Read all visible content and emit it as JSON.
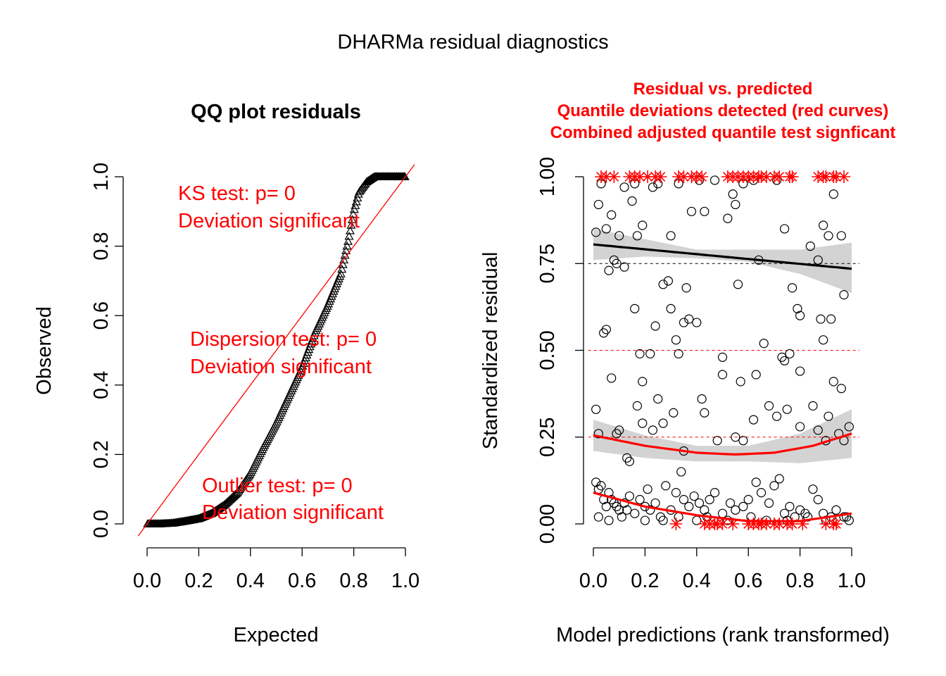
{
  "title": "DHARMa residual diagnostics",
  "colors": {
    "test_text": "#ff0000",
    "points": "#000000",
    "band": "#d3d3d3"
  },
  "chart_data": [
    {
      "type": "scatter",
      "title": "QQ plot residuals",
      "xlabel": "Expected",
      "ylabel": "Observed",
      "xlim": [
        0,
        1
      ],
      "ylim": [
        0,
        1
      ],
      "x_ticks": [
        "0.0",
        "0.2",
        "0.4",
        "0.6",
        "0.8",
        "1.0"
      ],
      "y_ticks": [
        "0.0",
        "0.2",
        "0.4",
        "0.6",
        "0.8",
        "1.0"
      ],
      "marker": "triangle",
      "reference_line": {
        "from": [
          0,
          0
        ],
        "to": [
          1,
          1
        ],
        "color": "#ff0000"
      },
      "curve_knots": [
        [
          0.0,
          0.0
        ],
        [
          0.05,
          0.0
        ],
        [
          0.1,
          0.002
        ],
        [
          0.15,
          0.008
        ],
        [
          0.2,
          0.015
        ],
        [
          0.25,
          0.03
        ],
        [
          0.3,
          0.055
        ],
        [
          0.35,
          0.09
        ],
        [
          0.4,
          0.145
        ],
        [
          0.45,
          0.22
        ],
        [
          0.5,
          0.29
        ],
        [
          0.55,
          0.37
        ],
        [
          0.6,
          0.45
        ],
        [
          0.65,
          0.55
        ],
        [
          0.7,
          0.63
        ],
        [
          0.75,
          0.72
        ],
        [
          0.78,
          0.82
        ],
        [
          0.8,
          0.9
        ],
        [
          0.82,
          0.955
        ],
        [
          0.85,
          0.985
        ],
        [
          0.88,
          1.0
        ],
        [
          1.0,
          1.0
        ]
      ],
      "annotations": [
        {
          "line1": "KS test: p= 0",
          "line2": "Deviation  significant"
        },
        {
          "line1": "Dispersion test: p= 0",
          "line2": "Deviation  significant"
        },
        {
          "line1": "Outlier test: p= 0",
          "line2": "Deviation  significant"
        }
      ]
    },
    {
      "type": "scatter",
      "title_lines": [
        "Residual vs. predicted",
        "Quantile deviations detected (red curves)",
        "Combined adjusted quantile test signficant"
      ],
      "xlabel": "Model predictions (rank transformed)",
      "ylabel": "Standardized residual",
      "xlim": [
        0,
        1
      ],
      "ylim": [
        0,
        1
      ],
      "x_ticks": [
        "0.0",
        "0.2",
        "0.4",
        "0.6",
        "0.8",
        "1.0"
      ],
      "y_ticks": [
        "0.00",
        "0.25",
        "0.50",
        "0.75",
        "1.00"
      ],
      "reference_lines": [
        0.25,
        0.5,
        0.75
      ],
      "quantile_curves": [
        {
          "quantile": 0.75,
          "color": "#000000",
          "points": [
            [
              0.0,
              0.805
            ],
            [
              0.5,
              0.77
            ],
            [
              1.0,
              0.735
            ]
          ],
          "band": [
            [
              0.0,
              0.76,
              0.85
            ],
            [
              0.2,
              0.77,
              0.82
            ],
            [
              0.4,
              0.765,
              0.79
            ],
            [
              0.6,
              0.755,
              0.79
            ],
            [
              0.8,
              0.72,
              0.79
            ],
            [
              1.0,
              0.665,
              0.81
            ]
          ]
        },
        {
          "quantile": 0.25,
          "color": "#ff0000",
          "points": [
            [
              0.0,
              0.255
            ],
            [
              0.2,
              0.225
            ],
            [
              0.4,
              0.205
            ],
            [
              0.55,
              0.2
            ],
            [
              0.7,
              0.205
            ],
            [
              0.85,
              0.225
            ],
            [
              1.0,
              0.26
            ]
          ],
          "band": [
            [
              0.0,
              0.21,
              0.3
            ],
            [
              0.2,
              0.19,
              0.255
            ],
            [
              0.4,
              0.18,
              0.225
            ],
            [
              0.6,
              0.18,
              0.225
            ],
            [
              0.8,
              0.175,
              0.26
            ],
            [
              1.0,
              0.19,
              0.33
            ]
          ]
        },
        {
          "quantile": 0.5,
          "color": "#ff0000",
          "points": [
            [
              0.0,
              0.09
            ],
            [
              0.2,
              0.05
            ],
            [
              0.4,
              0.025
            ],
            [
              0.6,
              0.008
            ],
            [
              0.8,
              0.008
            ],
            [
              1.0,
              0.03
            ]
          ],
          "band": []
        }
      ],
      "points": [
        [
          0.01,
          0.84
        ],
        [
          0.02,
          0.92
        ],
        [
          0.03,
          0.98
        ],
        [
          0.05,
          0.85
        ],
        [
          0.06,
          0.73
        ],
        [
          0.07,
          0.89
        ],
        [
          0.08,
          0.76
        ],
        [
          0.09,
          0.75
        ],
        [
          0.1,
          0.83
        ],
        [
          0.12,
          0.97
        ],
        [
          0.12,
          0.74
        ],
        [
          0.15,
          0.93
        ],
        [
          0.16,
          0.98
        ],
        [
          0.17,
          0.83
        ],
        [
          0.19,
          0.86
        ],
        [
          0.23,
          0.97
        ],
        [
          0.25,
          0.98
        ],
        [
          0.27,
          0.69
        ],
        [
          0.29,
          0.7
        ],
        [
          0.3,
          0.83
        ],
        [
          0.33,
          0.98
        ],
        [
          0.36,
          0.68
        ],
        [
          0.38,
          0.9
        ],
        [
          0.41,
          0.99
        ],
        [
          0.43,
          0.9
        ],
        [
          0.47,
          0.99
        ],
        [
          0.52,
          0.88
        ],
        [
          0.54,
          0.95
        ],
        [
          0.55,
          0.92
        ],
        [
          0.56,
          0.69
        ],
        [
          0.58,
          0.98
        ],
        [
          0.62,
          0.99
        ],
        [
          0.64,
          0.76
        ],
        [
          0.71,
          0.99
        ],
        [
          0.74,
          0.85
        ],
        [
          0.77,
          0.68
        ],
        [
          0.8,
          0.6
        ],
        [
          0.84,
          0.8
        ],
        [
          0.87,
          0.76
        ],
        [
          0.89,
          0.86
        ],
        [
          0.91,
          0.83
        ],
        [
          0.93,
          0.95
        ],
        [
          0.96,
          0.83
        ],
        [
          0.97,
          0.66
        ],
        [
          0.04,
          0.55
        ],
        [
          0.05,
          0.56
        ],
        [
          0.16,
          0.62
        ],
        [
          0.18,
          0.49
        ],
        [
          0.19,
          0.41
        ],
        [
          0.22,
          0.49
        ],
        [
          0.24,
          0.57
        ],
        [
          0.3,
          0.62
        ],
        [
          0.32,
          0.53
        ],
        [
          0.33,
          0.49
        ],
        [
          0.35,
          0.58
        ],
        [
          0.37,
          0.59
        ],
        [
          0.4,
          0.58
        ],
        [
          0.5,
          0.48
        ],
        [
          0.5,
          0.43
        ],
        [
          0.57,
          0.41
        ],
        [
          0.63,
          0.43
        ],
        [
          0.66,
          0.52
        ],
        [
          0.73,
          0.48
        ],
        [
          0.74,
          0.47
        ],
        [
          0.76,
          0.49
        ],
        [
          0.79,
          0.62
        ],
        [
          0.8,
          0.44
        ],
        [
          0.88,
          0.59
        ],
        [
          0.89,
          0.53
        ],
        [
          0.92,
          0.59
        ],
        [
          0.93,
          0.41
        ],
        [
          0.96,
          0.39
        ],
        [
          0.01,
          0.33
        ],
        [
          0.02,
          0.26
        ],
        [
          0.07,
          0.42
        ],
        [
          0.09,
          0.26
        ],
        [
          0.1,
          0.27
        ],
        [
          0.13,
          0.19
        ],
        [
          0.14,
          0.18
        ],
        [
          0.17,
          0.34
        ],
        [
          0.19,
          0.29
        ],
        [
          0.23,
          0.27
        ],
        [
          0.25,
          0.36
        ],
        [
          0.27,
          0.29
        ],
        [
          0.31,
          0.32
        ],
        [
          0.35,
          0.21
        ],
        [
          0.42,
          0.36
        ],
        [
          0.43,
          0.32
        ],
        [
          0.48,
          0.24
        ],
        [
          0.55,
          0.25
        ],
        [
          0.58,
          0.24
        ],
        [
          0.62,
          0.3
        ],
        [
          0.68,
          0.34
        ],
        [
          0.71,
          0.31
        ],
        [
          0.75,
          0.33
        ],
        [
          0.8,
          0.28
        ],
        [
          0.85,
          0.34
        ],
        [
          0.87,
          0.27
        ],
        [
          0.9,
          0.24
        ],
        [
          0.91,
          0.31
        ],
        [
          0.95,
          0.26
        ],
        [
          0.97,
          0.24
        ],
        [
          0.99,
          0.28
        ],
        [
          0.01,
          0.12
        ],
        [
          0.02,
          0.1
        ],
        [
          0.03,
          0.11
        ],
        [
          0.04,
          0.07
        ],
        [
          0.05,
          0.05
        ],
        [
          0.06,
          0.09
        ],
        [
          0.07,
          0.07
        ],
        [
          0.08,
          0.06
        ],
        [
          0.09,
          0.05
        ],
        [
          0.1,
          0.04
        ],
        [
          0.12,
          0.06
        ],
        [
          0.13,
          0.04
        ],
        [
          0.14,
          0.08
        ],
        [
          0.16,
          0.03
        ],
        [
          0.18,
          0.07
        ],
        [
          0.2,
          0.05
        ],
        [
          0.21,
          0.1
        ],
        [
          0.22,
          0.04
        ],
        [
          0.24,
          0.06
        ],
        [
          0.26,
          0.02
        ],
        [
          0.28,
          0.11
        ],
        [
          0.3,
          0.04
        ],
        [
          0.32,
          0.09
        ],
        [
          0.34,
          0.15
        ],
        [
          0.35,
          0.07
        ],
        [
          0.37,
          0.05
        ],
        [
          0.39,
          0.08
        ],
        [
          0.41,
          0.06
        ],
        [
          0.43,
          0.04
        ],
        [
          0.45,
          0.07
        ],
        [
          0.47,
          0.09
        ],
        [
          0.5,
          0.03
        ],
        [
          0.53,
          0.06
        ],
        [
          0.55,
          0.04
        ],
        [
          0.58,
          0.05
        ],
        [
          0.6,
          0.07
        ],
        [
          0.63,
          0.12
        ],
        [
          0.65,
          0.09
        ],
        [
          0.68,
          0.06
        ],
        [
          0.7,
          0.11
        ],
        [
          0.72,
          0.13
        ],
        [
          0.74,
          0.03
        ],
        [
          0.76,
          0.05
        ],
        [
          0.78,
          0.02
        ],
        [
          0.8,
          0.04
        ],
        [
          0.82,
          0.03
        ],
        [
          0.85,
          0.1
        ],
        [
          0.87,
          0.07
        ],
        [
          0.89,
          0.03
        ],
        [
          0.92,
          0.02
        ],
        [
          0.94,
          0.04
        ],
        [
          0.97,
          0.02
        ],
        [
          0.99,
          0.01
        ],
        [
          0.02,
          0.02
        ],
        [
          0.06,
          0.01
        ],
        [
          0.11,
          0.02
        ],
        [
          0.2,
          0.01
        ],
        [
          0.27,
          0.01
        ],
        [
          0.33,
          0.02
        ],
        [
          0.4,
          0.01
        ],
        [
          0.44,
          0.02
        ],
        [
          0.52,
          0.01
        ],
        [
          0.61,
          0.02
        ],
        [
          0.67,
          0.01
        ],
        [
          0.75,
          0.01
        ],
        [
          0.83,
          0.02
        ],
        [
          0.9,
          0.01
        ],
        [
          0.98,
          0.02
        ]
      ],
      "outliers_high_x": [
        0.03,
        0.05,
        0.08,
        0.14,
        0.16,
        0.18,
        0.21,
        0.24,
        0.26,
        0.33,
        0.35,
        0.38,
        0.4,
        0.42,
        0.52,
        0.54,
        0.56,
        0.58,
        0.6,
        0.62,
        0.64,
        0.65,
        0.67,
        0.7,
        0.72,
        0.76,
        0.77,
        0.87,
        0.89,
        0.9,
        0.93,
        0.94,
        0.97
      ],
      "outliers_low_x": [
        0.32,
        0.43,
        0.45,
        0.47,
        0.48,
        0.5,
        0.54,
        0.6,
        0.62,
        0.64,
        0.65,
        0.67,
        0.7,
        0.72,
        0.75,
        0.77,
        0.81,
        0.9,
        0.93,
        0.94
      ]
    }
  ]
}
